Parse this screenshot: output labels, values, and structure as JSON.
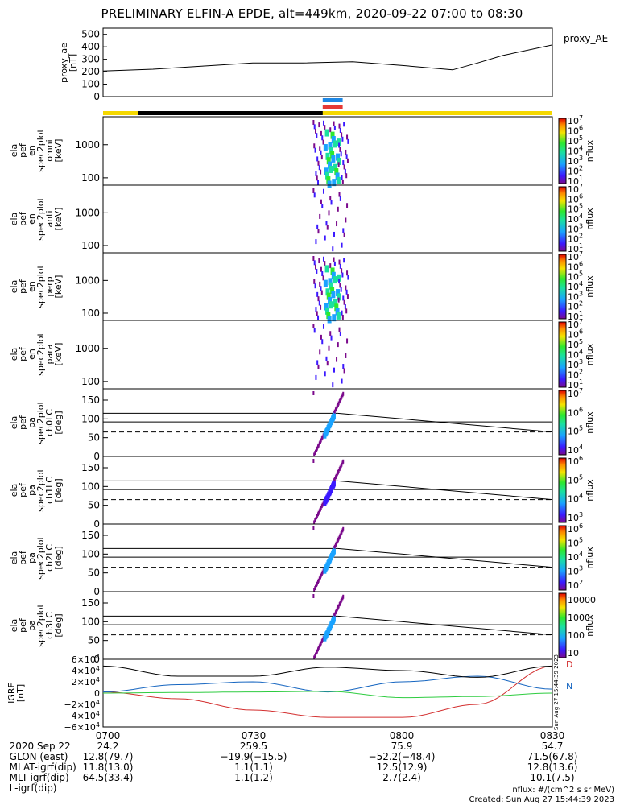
{
  "title": "PRELIMINARY ELFIN-A EPDE, alt=449km, 2020-09-22 07:00 to 08:30",
  "colors": {
    "black": "#000000",
    "yellow": "#f5d800",
    "blue_bar": "#1e88e5",
    "red_bar": "#e53935",
    "grf_x": "#d32f2f",
    "grf_y": "#1565c0",
    "grf_z": "#2ecc40"
  },
  "panels": [
    {
      "id": "ae",
      "ylabel": [
        "proxy_ae",
        "[nT]"
      ],
      "ticks": [
        "500",
        "400",
        "300",
        "200",
        "100",
        "0"
      ],
      "right_label": "proxy_AE"
    },
    {
      "id": "omni",
      "ylabel": [
        "ela",
        "pef",
        "en",
        "spec2plot",
        "omni",
        "[keV]"
      ],
      "ticks": [
        "1000",
        "100"
      ],
      "cbar_ticks": [
        "10^7",
        "10^6",
        "10^5",
        "10^4",
        "10^3",
        "10^2",
        "10^1"
      ],
      "cbar_label": "nflux"
    },
    {
      "id": "anti",
      "ylabel": [
        "ela",
        "pef",
        "en",
        "spec2plot",
        "anti",
        "[keV]"
      ],
      "ticks": [
        "1000",
        "100"
      ],
      "cbar_ticks": [
        "10^7",
        "10^6",
        "10^5",
        "10^4",
        "10^3",
        "10^2",
        "10^1"
      ],
      "cbar_label": "nflux"
    },
    {
      "id": "perp",
      "ylabel": [
        "ela",
        "pef",
        "en",
        "spec2plot",
        "perp",
        "[keV]"
      ],
      "ticks": [
        "1000",
        "100"
      ],
      "cbar_ticks": [
        "10^7",
        "10^6",
        "10^5",
        "10^4",
        "10^3",
        "10^2",
        "10^1"
      ],
      "cbar_label": "nflux"
    },
    {
      "id": "para",
      "ylabel": [
        "ela",
        "pef",
        "en",
        "spec2plot",
        "para",
        "[keV]"
      ],
      "ticks": [
        "1000",
        "100"
      ],
      "cbar_ticks": [
        "10^7",
        "10^6",
        "10^5",
        "10^4",
        "10^3",
        "10^2",
        "10^1"
      ],
      "cbar_label": "nflux"
    },
    {
      "id": "ch0",
      "ylabel": [
        "ela",
        "pef",
        "pa",
        "spec2plot",
        "ch0LC",
        "[deg]"
      ],
      "ticks": [
        "150",
        "100",
        "50",
        "0"
      ],
      "cbar_ticks": [
        "10^7",
        "10^6",
        "10^5",
        "10^4"
      ],
      "cbar_label": "nflux"
    },
    {
      "id": "ch1",
      "ylabel": [
        "ela",
        "pef",
        "pa",
        "spec2plot",
        "ch1LC",
        "[deg]"
      ],
      "ticks": [
        "150",
        "100",
        "50",
        "0"
      ],
      "cbar_ticks": [
        "10^6",
        "10^5",
        "10^4",
        "10^3"
      ],
      "cbar_label": "nflux"
    },
    {
      "id": "ch2",
      "ylabel": [
        "ela",
        "pef",
        "pa",
        "spec2plot",
        "ch2LC",
        "[deg]"
      ],
      "ticks": [
        "150",
        "100",
        "50",
        "0"
      ],
      "cbar_ticks": [
        "10^6",
        "10^5",
        "10^4",
        "10^3",
        "10^2"
      ],
      "cbar_label": "nflux"
    },
    {
      "id": "ch3",
      "ylabel": [
        "ela",
        "pef",
        "pa",
        "spec2plot",
        "ch3LC",
        "[deg]"
      ],
      "ticks": [
        "150",
        "100",
        "50",
        "0"
      ],
      "cbar_ticks": [
        "10000",
        "1000",
        "100",
        "10"
      ],
      "cbar_label": "nflux"
    },
    {
      "id": "grf",
      "ylabel": [
        "IGRF",
        "[nT]"
      ],
      "ticks": [
        "6×10^4",
        "4×10^4",
        "2×10^4",
        "0",
        "−2×10^4",
        "−4×10^4",
        "−6×10^4"
      ],
      "right_labels": [
        "D",
        "N"
      ],
      "side_note": "Sun Aug 27 15:44:39 2023"
    }
  ],
  "chart_data": [
    {
      "type": "line",
      "name": "proxy_ae",
      "ylabel": "proxy_ae [nT]",
      "ylim": [
        0,
        550
      ],
      "x": [
        "07:00",
        "07:10",
        "07:20",
        "07:30",
        "07:40",
        "07:50",
        "08:00",
        "08:10",
        "08:15",
        "08:20",
        "08:30"
      ],
      "values": [
        205,
        220,
        245,
        270,
        270,
        280,
        250,
        215,
        270,
        330,
        415
      ],
      "series_label": "proxy_AE"
    },
    {
      "type": "heatmap",
      "name": "spectrograms",
      "panels": [
        "omni",
        "anti",
        "perp",
        "para"
      ],
      "ylabel": "[keV]",
      "yscale": "log",
      "ylim": [
        60,
        7000
      ],
      "active_interval": [
        "07:42",
        "07:48"
      ],
      "colorbar": {
        "label": "nflux",
        "scale": "log",
        "range": [
          "10^1",
          "10^7"
        ]
      }
    },
    {
      "type": "heatmap",
      "name": "pitch_angle",
      "panels": [
        "ch0LC",
        "ch1LC",
        "ch2LC",
        "ch3LC"
      ],
      "ylabel": "[deg]",
      "ylim": [
        0,
        180
      ],
      "lines": {
        "solid_a": [
          115,
          65
        ],
        "solid_b": [
          92,
          92
        ],
        "dashed": [
          65,
          65
        ]
      }
    },
    {
      "type": "line",
      "name": "IGRF",
      "ylabel": "IGRF [nT]",
      "ylim": [
        -60000,
        60000
      ],
      "x": [
        "07:00",
        "07:15",
        "07:30",
        "07:45",
        "08:00",
        "08:15",
        "08:30"
      ],
      "series": [
        {
          "name": "D",
          "values": [
            2000,
            -10000,
            -30000,
            -43000,
            -43000,
            -20000,
            48000
          ]
        },
        {
          "name": "N",
          "values": [
            2000,
            15000,
            20000,
            2000,
            20000,
            30000,
            7000
          ]
        },
        {
          "name": "",
          "values": [
            48000,
            30000,
            30000,
            46000,
            40000,
            28000,
            48000
          ]
        },
        {
          "name": "",
          "values": [
            0,
            1000,
            2000,
            3000,
            -8000,
            -6000,
            0
          ]
        }
      ]
    }
  ],
  "orbit_rows": {
    "labels": [
      "2020 Sep 22",
      "GLON (east)",
      "MLAT-igrf(dip)",
      "MLT-igrf(dip)",
      "L-igrf(dip)"
    ],
    "cols": [
      [
        "0700",
        "24.2",
        "12.8(79.7)",
        "11.8(13.0)",
        "64.5(33.4)"
      ],
      [
        "0730",
        "259.5",
        "−19.9(−15.5)",
        "1.1(1.1)",
        "1.1(1.2)"
      ],
      [
        "0800",
        "75.9",
        "−52.2(−48.4)",
        "12.5(12.9)",
        "2.7(2.4)"
      ],
      [
        "0830",
        "54.7",
        "71.5(67.8)",
        "12.8(13.6)",
        "10.1(7.5)"
      ]
    ]
  },
  "credit": {
    "units": "nflux: #/(cm^2 s sr MeV)",
    "created": "Created: Sun Aug 27 15:44:39 2023"
  }
}
